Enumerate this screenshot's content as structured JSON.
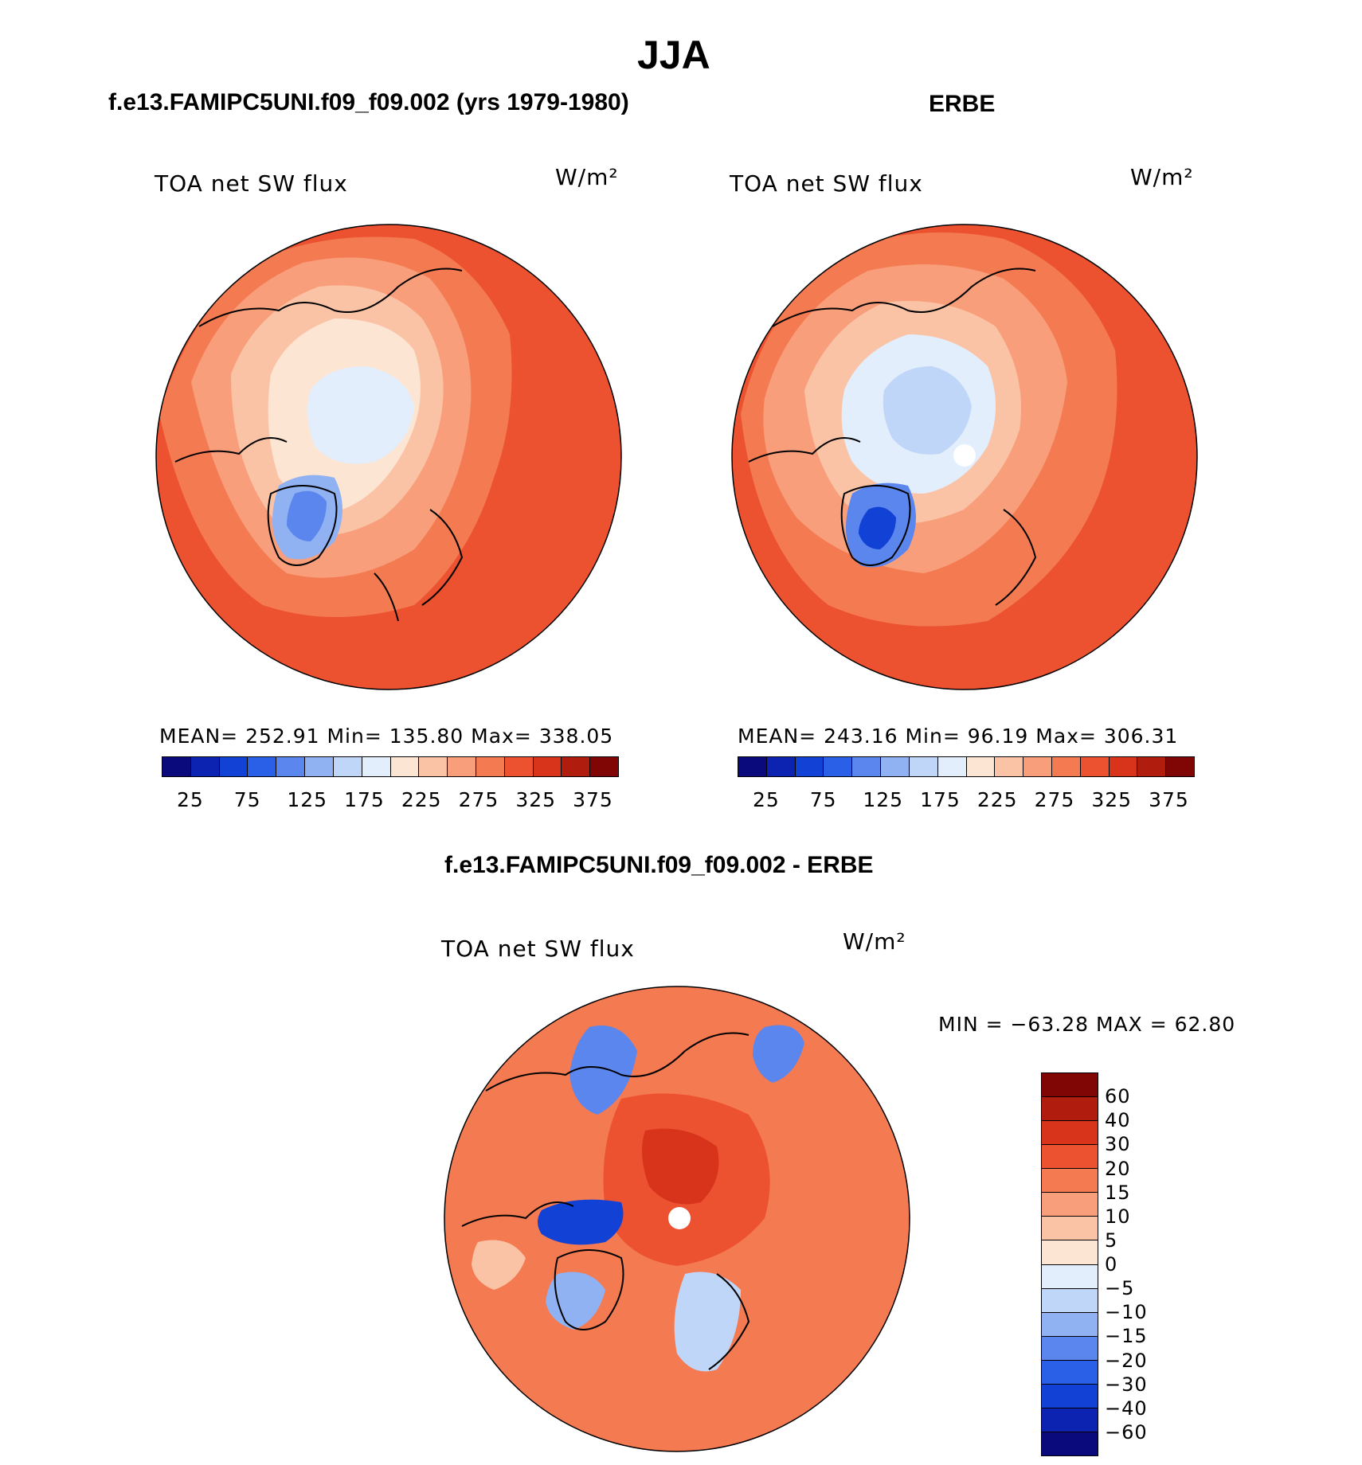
{
  "figure": {
    "season_title": "JJA",
    "panel1_title": "f.e13.FAMIPC5UNI.f09_f09.002 (yrs 1979-1980)",
    "panel2_title": "ERBE",
    "panel3_title": "f.e13.FAMIPC5UNI.f09_f09.002 - ERBE"
  },
  "panels": [
    {
      "variable": "TOA net SW flux",
      "units": "W/m²",
      "stats_label": "MEAN=  252.91    Min=  135.80    Max=  338.05"
    },
    {
      "variable": "TOA net SW flux",
      "units": "W/m²",
      "stats_label": "MEAN=  243.16    Min=    96.19    Max=  306.31"
    },
    {
      "variable": "TOA net SW flux",
      "units": "W/m²",
      "stats_label": "MIN  =  −63.28  MAX  =    62.80"
    }
  ],
  "colorbar_abs": {
    "tick_labels": [
      "25",
      "75",
      "125",
      "175",
      "225",
      "275",
      "325",
      "375"
    ],
    "colors": [
      "#0a0a7d",
      "#0b23b0",
      "#1241d6",
      "#2a5fe8",
      "#5a86ee",
      "#90b2f3",
      "#c0d6f8",
      "#e2eefc",
      "#fde5d4",
      "#fbc3a6",
      "#f89e7a",
      "#f47a52",
      "#ec5230",
      "#d8341c",
      "#b01c0e",
      "#800606"
    ]
  },
  "colorbar_diff": {
    "tick_labels": [
      "60",
      "40",
      "30",
      "20",
      "15",
      "10",
      "5",
      "0",
      "−5",
      "−10",
      "−15",
      "−20",
      "−30",
      "−40",
      "−60"
    ],
    "colors": [
      "#800606",
      "#b01c0e",
      "#d8341c",
      "#ec5230",
      "#f47a52",
      "#f89e7a",
      "#fbc3a6",
      "#fde5d4",
      "#e2eefc",
      "#c0d6f8",
      "#90b2f3",
      "#5a86ee",
      "#2a5fe8",
      "#1241d6",
      "#0b23b0",
      "#0a0a7d"
    ]
  }
}
